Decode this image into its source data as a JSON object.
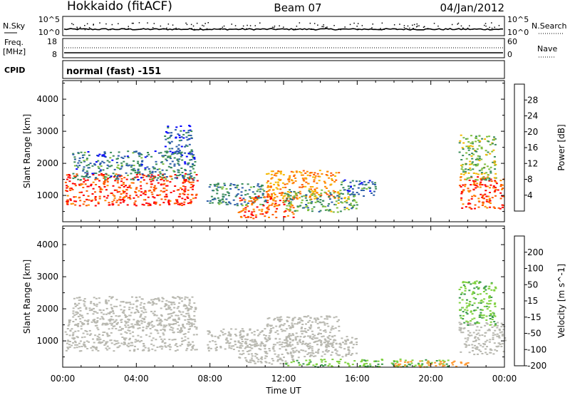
{
  "header": {
    "station": "Hokkaido (fitACF)",
    "beam": "Beam 07",
    "date": "04/Jan/2012"
  },
  "top_panels": {
    "nsky_label": "N.Sky",
    "nsky_ticks": [
      "10^5",
      "10^0"
    ],
    "nsearch_label": "N.Search",
    "nsearch_ticks": [
      "10^5",
      "10^0"
    ],
    "freq_label": "Freq.",
    "freq_unit": "[MHz]",
    "freq_ticks": [
      "18",
      "8"
    ],
    "nave_label": "Nave",
    "nave_ticks": [
      "60",
      "0"
    ],
    "cpid_label": "CPID",
    "cpid_value": "normal (fast) -151"
  },
  "colors": {
    "power": [
      "#0000ff",
      "#2e5fa8",
      "#3a8c5a",
      "#7fbf3f",
      "#f5b800",
      "#ff8c00",
      "#ff5a00",
      "#ff0000"
    ],
    "velocity": [
      "#ff0000",
      "#ff6600",
      "#ff9933",
      "#bcbcb0",
      "#7fd13f",
      "#3a9a4a",
      "#1f5faa",
      "#2020cc"
    ],
    "ground_scatter": "#b8b8b0"
  },
  "chart_data": [
    {
      "type": "heatmap",
      "title": "Power",
      "xlabel": "Time UT",
      "ylabel": "Slant Range [km]",
      "x_ticks": [
        "00:00",
        "04:00",
        "08:00",
        "12:00",
        "16:00",
        "20:00",
        "00:00"
      ],
      "xlim_hours": [
        0,
        24
      ],
      "y_ticks": [
        1000,
        2000,
        3000,
        4000
      ],
      "ylim": [
        180,
        4580
      ],
      "colorbar_label": "Power [dB]",
      "colorbar_ticks": [
        4,
        8,
        12,
        16,
        20,
        24,
        28
      ],
      "clim": [
        0,
        32
      ],
      "regions": [
        {
          "t0": 0.1,
          "t1": 7.3,
          "r0": 700,
          "r1": 1700,
          "level": 28
        },
        {
          "t0": 0.5,
          "t1": 7.2,
          "r0": 1500,
          "r1": 2400,
          "level": 8
        },
        {
          "t0": 5.5,
          "t1": 7.0,
          "r0": 2300,
          "r1": 3200,
          "level": 6
        },
        {
          "t0": 7.8,
          "t1": 11.0,
          "r0": 700,
          "r1": 1400,
          "level": 9
        },
        {
          "t0": 9.5,
          "t1": 12.5,
          "r0": 300,
          "r1": 1000,
          "level": 26
        },
        {
          "t0": 11.0,
          "t1": 15.0,
          "r0": 900,
          "r1": 1800,
          "level": 22
        },
        {
          "t0": 12.0,
          "t1": 16.0,
          "r0": 500,
          "r1": 1200,
          "level": 12
        },
        {
          "t0": 15.0,
          "t1": 17.0,
          "r0": 1000,
          "r1": 1500,
          "level": 8
        },
        {
          "t0": 21.5,
          "t1": 24.0,
          "r0": 600,
          "r1": 1600,
          "level": 27
        },
        {
          "t0": 21.5,
          "t1": 23.5,
          "r0": 1500,
          "r1": 2900,
          "level": 14
        }
      ]
    },
    {
      "type": "heatmap",
      "title": "Velocity",
      "xlabel": "Time UT",
      "ylabel": "Slant Range [km]",
      "x_ticks": [
        "00:00",
        "04:00",
        "08:00",
        "12:00",
        "16:00",
        "20:00",
        "00:00"
      ],
      "xlim_hours": [
        0,
        24
      ],
      "y_ticks": [
        1000,
        2000,
        3000,
        4000
      ],
      "ylim": [
        180,
        4580
      ],
      "colorbar_label": "Velocity [m s^-1]",
      "colorbar_ticks": [
        200,
        100,
        50,
        15,
        -15,
        -50,
        -100,
        -200
      ],
      "clim": [
        -250,
        250
      ],
      "regions": [
        {
          "t0": 0.1,
          "t1": 7.3,
          "r0": 700,
          "r1": 1700,
          "level": 0
        },
        {
          "t0": 0.5,
          "t1": 7.2,
          "r0": 1500,
          "r1": 2400,
          "level": 0
        },
        {
          "t0": 7.8,
          "t1": 11.0,
          "r0": 700,
          "r1": 1400,
          "level": 0
        },
        {
          "t0": 9.5,
          "t1": 12.5,
          "r0": 300,
          "r1": 1000,
          "level": 0
        },
        {
          "t0": 11.0,
          "t1": 15.0,
          "r0": 900,
          "r1": 1800,
          "level": 0
        },
        {
          "t0": 12.0,
          "t1": 16.0,
          "r0": 500,
          "r1": 1200,
          "level": 0
        },
        {
          "t0": 12.0,
          "t1": 21.0,
          "r0": 200,
          "r1": 450,
          "level": 60
        },
        {
          "t0": 18.0,
          "t1": 22.0,
          "r0": 200,
          "r1": 400,
          "level": -80
        },
        {
          "t0": 21.5,
          "t1": 24.0,
          "r0": 600,
          "r1": 1600,
          "level": 0
        },
        {
          "t0": 21.5,
          "t1": 23.5,
          "r0": 1500,
          "r1": 2900,
          "level": 60
        }
      ]
    }
  ]
}
